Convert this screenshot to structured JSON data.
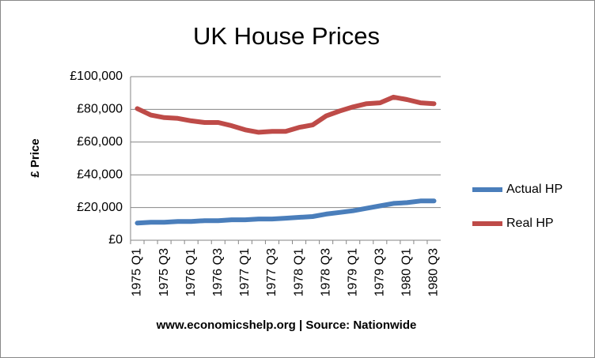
{
  "chart_data": {
    "type": "line",
    "title": "UK House Prices",
    "y_label": "£ Price",
    "footer": "www.economicshelp.org | Source: Nationwide",
    "categories": [
      "1975 Q1",
      null,
      "1975 Q3",
      null,
      "1976 Q1",
      null,
      "1976 Q3",
      null,
      "1977 Q1",
      null,
      "1977 Q3",
      null,
      "1978 Q1",
      null,
      "1978 Q3",
      null,
      "1979 Q1",
      null,
      "1979 Q3",
      null,
      "1980 Q1",
      null,
      "1980 Q3"
    ],
    "series": [
      {
        "name": "Actual HP",
        "color": "#4a7ebb",
        "values": [
          10500,
          11000,
          11000,
          11500,
          11500,
          12000,
          12000,
          12500,
          12500,
          13000,
          13000,
          13500,
          14000,
          14500,
          16000,
          17000,
          18000,
          19500,
          21000,
          22500,
          23000,
          24000,
          24000
        ]
      },
      {
        "name": "Real HP",
        "color": "#be4b48",
        "values": [
          80500,
          76500,
          75000,
          74500,
          73000,
          72000,
          72000,
          70000,
          67500,
          66000,
          66500,
          66500,
          69000,
          70500,
          76000,
          79000,
          81500,
          83500,
          84000,
          87500,
          86000,
          84000,
          83500
        ]
      }
    ],
    "ylim": [
      0,
      100000
    ],
    "yticks": [
      {
        "value": 0,
        "label": "£0"
      },
      {
        "value": 20000,
        "label": "£20,000"
      },
      {
        "value": 40000,
        "label": "£40,000"
      },
      {
        "value": 60000,
        "label": "£60,000"
      },
      {
        "value": 80000,
        "label": "£80,000"
      },
      {
        "value": 100000,
        "label": "£100,000"
      }
    ],
    "grid": true,
    "legend": "right"
  }
}
